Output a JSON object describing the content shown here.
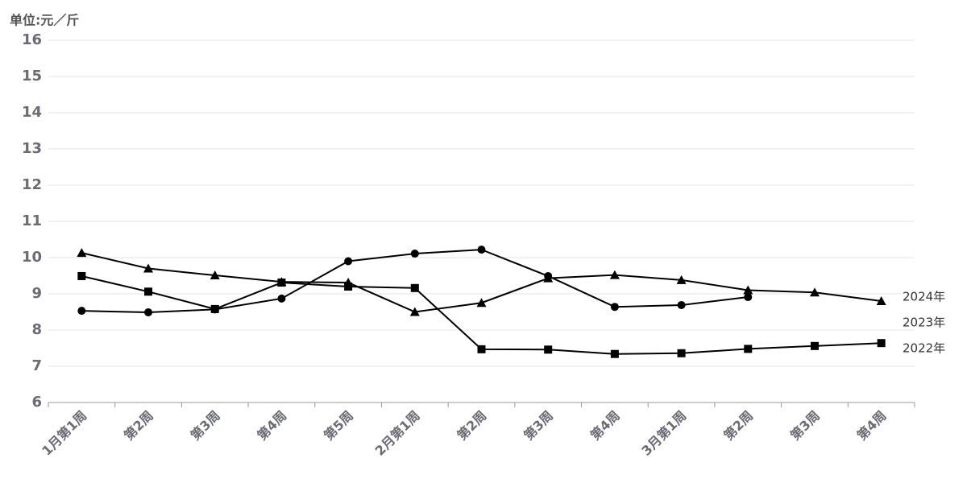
{
  "chart_data": {
    "type": "line",
    "y_label": "单位:元／斤",
    "categories": [
      "1月第1周",
      "第2周",
      "第3周",
      "第4周",
      "第5周",
      "2月第1周",
      "第2周",
      "第3周",
      "第4周",
      "3月第1周",
      "第2周",
      "第3周",
      "第4周"
    ],
    "series": [
      {
        "name": "2024年",
        "color": "#000000",
        "marker": "triangle",
        "values": [
          10.13,
          9.7,
          9.51,
          9.33,
          9.31,
          8.5,
          8.75,
          9.43,
          9.52,
          9.38,
          9.1,
          9.04,
          8.8
        ]
      },
      {
        "name": "2023年",
        "color": "#000000",
        "marker": "circle",
        "values": [
          8.53,
          8.49,
          8.57,
          8.87,
          9.9,
          10.11,
          10.22,
          9.49,
          8.64,
          8.69,
          8.91,
          null,
          null
        ]
      },
      {
        "name": "2022年",
        "color": "#000000",
        "marker": "square",
        "values": [
          9.49,
          9.06,
          8.58,
          9.31,
          9.2,
          9.16,
          7.47,
          7.46,
          7.34,
          7.36,
          7.48,
          7.56,
          7.64
        ]
      }
    ],
    "ylim": [
      6,
      16
    ],
    "yticks": [
      6,
      7,
      8,
      9,
      10,
      11,
      12,
      13,
      14,
      15,
      16
    ],
    "grid": true
  }
}
